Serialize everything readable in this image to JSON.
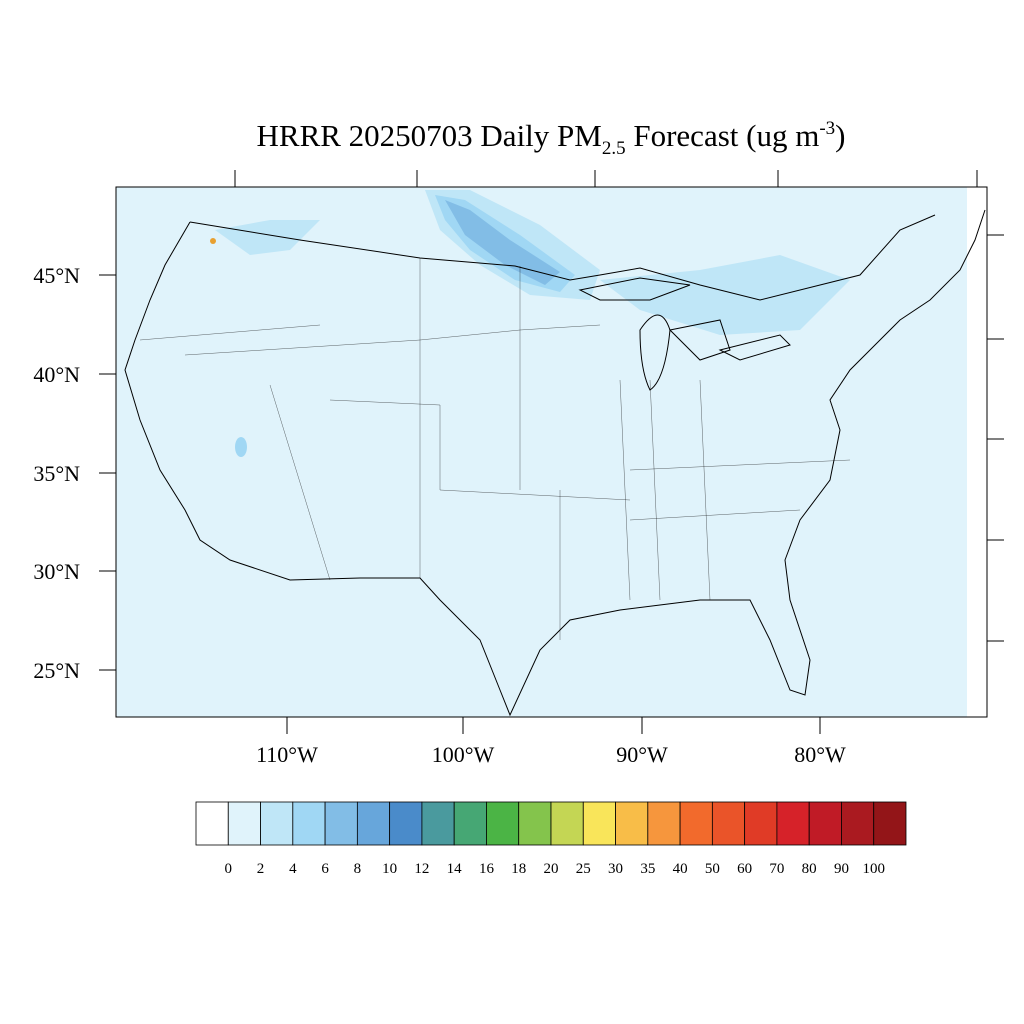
{
  "title": {
    "main": "HRRR 20250703 Daily PM",
    "subscript": "2.5",
    "middle": " Forecast (ug m",
    "superscript": "-3",
    "end": ")"
  },
  "latitude_labels": [
    "45°N",
    "40°N",
    "35°N",
    "30°N",
    "25°N"
  ],
  "longitude_labels": [
    "110°W",
    "100°W",
    "90°W",
    "80°W"
  ],
  "colorbar": {
    "levels": [
      0,
      2,
      4,
      6,
      8,
      10,
      12,
      14,
      16,
      18,
      20,
      25,
      30,
      35,
      40,
      50,
      60,
      70,
      80,
      90,
      100
    ],
    "colors": [
      "#ffffff",
      "#e0f3fb",
      "#bfe6f7",
      "#a0d7f4",
      "#82bde6",
      "#67a6db",
      "#4a8bca",
      "#4a9a9e",
      "#46a774",
      "#4bb445",
      "#84c44c",
      "#c4d654",
      "#f9e55a",
      "#f8bd48",
      "#f6963d",
      "#f26a2c",
      "#ea5429",
      "#e03b26",
      "#d62229",
      "#c01b26",
      "#aa1a20",
      "#931518"
    ]
  }
}
